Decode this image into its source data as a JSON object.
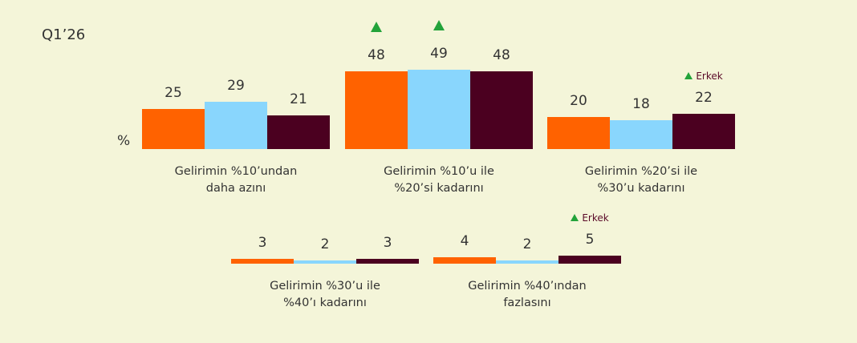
{
  "chart_data": {
    "type": "bar",
    "title": "Q1’26",
    "y_label": "%",
    "categories": [
      "Gelirimin %10’undan\ndaha azını",
      "Gelirimin %10’u ile\n%20’si kadarını",
      "Gelirimin %20’si ile\n%30’u kadarını",
      "Gelirimin %30’u ile\n%40’ı kadarını",
      "Gelirimin %40’ından\nfazlasını"
    ],
    "ylim": [
      0,
      50
    ],
    "series": [
      {
        "color": "#ff6200",
        "values": [
          25,
          48,
          20,
          3,
          4
        ],
        "up_marks": [
          false,
          true,
          false,
          false,
          false
        ],
        "notes": [
          null,
          null,
          null,
          null,
          null
        ]
      },
      {
        "color": "#89d6fd",
        "values": [
          29,
          49,
          18,
          2,
          2
        ],
        "up_marks": [
          false,
          true,
          false,
          false,
          false
        ],
        "notes": [
          null,
          null,
          null,
          null,
          null
        ]
      },
      {
        "color": "#4b0020",
        "values": [
          21,
          48,
          22,
          3,
          5
        ],
        "up_marks": [
          false,
          false,
          false,
          false,
          false
        ],
        "notes": [
          null,
          null,
          "Erkek",
          null,
          "Erkek"
        ]
      }
    ]
  }
}
